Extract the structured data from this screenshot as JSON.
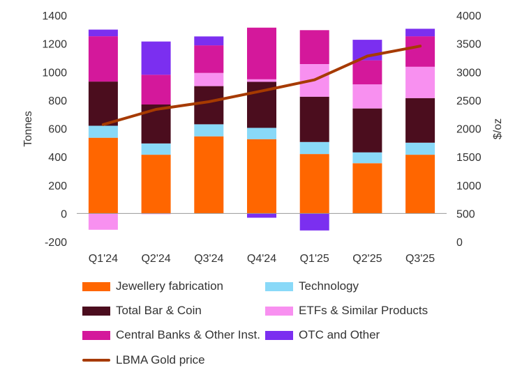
{
  "chart_data": {
    "type": "bar",
    "stacked": true,
    "categories": [
      "Q1'24",
      "Q2'24",
      "Q3'24",
      "Q4'24",
      "Q1'25",
      "Q2'25",
      "Q3'25"
    ],
    "ylabel": "Tonnes",
    "ylim": [
      -200,
      1400
    ],
    "yticks": [
      "1400",
      "1200",
      "1000",
      "800",
      "600",
      "400",
      "200",
      "0",
      "-200"
    ],
    "y2label": "$/oz",
    "y2lim": [
      0,
      4000
    ],
    "y2ticks": [
      "4000",
      "3500",
      "3000",
      "2500",
      "2000",
      "1500",
      "1000",
      "500",
      "0"
    ],
    "grid": false,
    "legend_position": "bottom",
    "series": [
      {
        "name": "Jewellery fabrication",
        "color": "#FF6600",
        "values": [
          535,
          415,
          545,
          525,
          420,
          355,
          415
        ]
      },
      {
        "name": "Technology",
        "color": "#89D9F8",
        "values": [
          85,
          80,
          85,
          80,
          85,
          77,
          85
        ]
      },
      {
        "name": "Total Bar & Coin",
        "color": "#4B0D1E",
        "values": [
          312,
          275,
          270,
          325,
          320,
          310,
          315
        ]
      },
      {
        "name": "ETFs & Similar Products",
        "color": "#F890F0",
        "values": [
          -115,
          -5,
          93,
          18,
          230,
          170,
          222
        ]
      },
      {
        "name": "Central Banks & Other Inst.",
        "color": "#D4189B",
        "values": [
          320,
          210,
          195,
          365,
          240,
          170,
          215
        ]
      },
      {
        "name": "OTC and Other",
        "color": "#7B2FF0",
        "values": [
          47,
          235,
          63,
          -30,
          -120,
          145,
          53
        ]
      }
    ],
    "line": {
      "name": "LBMA Gold price",
      "color": "#A63A00",
      "axis": "right",
      "values": [
        2070,
        2338,
        2474,
        2663,
        2860,
        3280,
        3456
      ]
    }
  }
}
